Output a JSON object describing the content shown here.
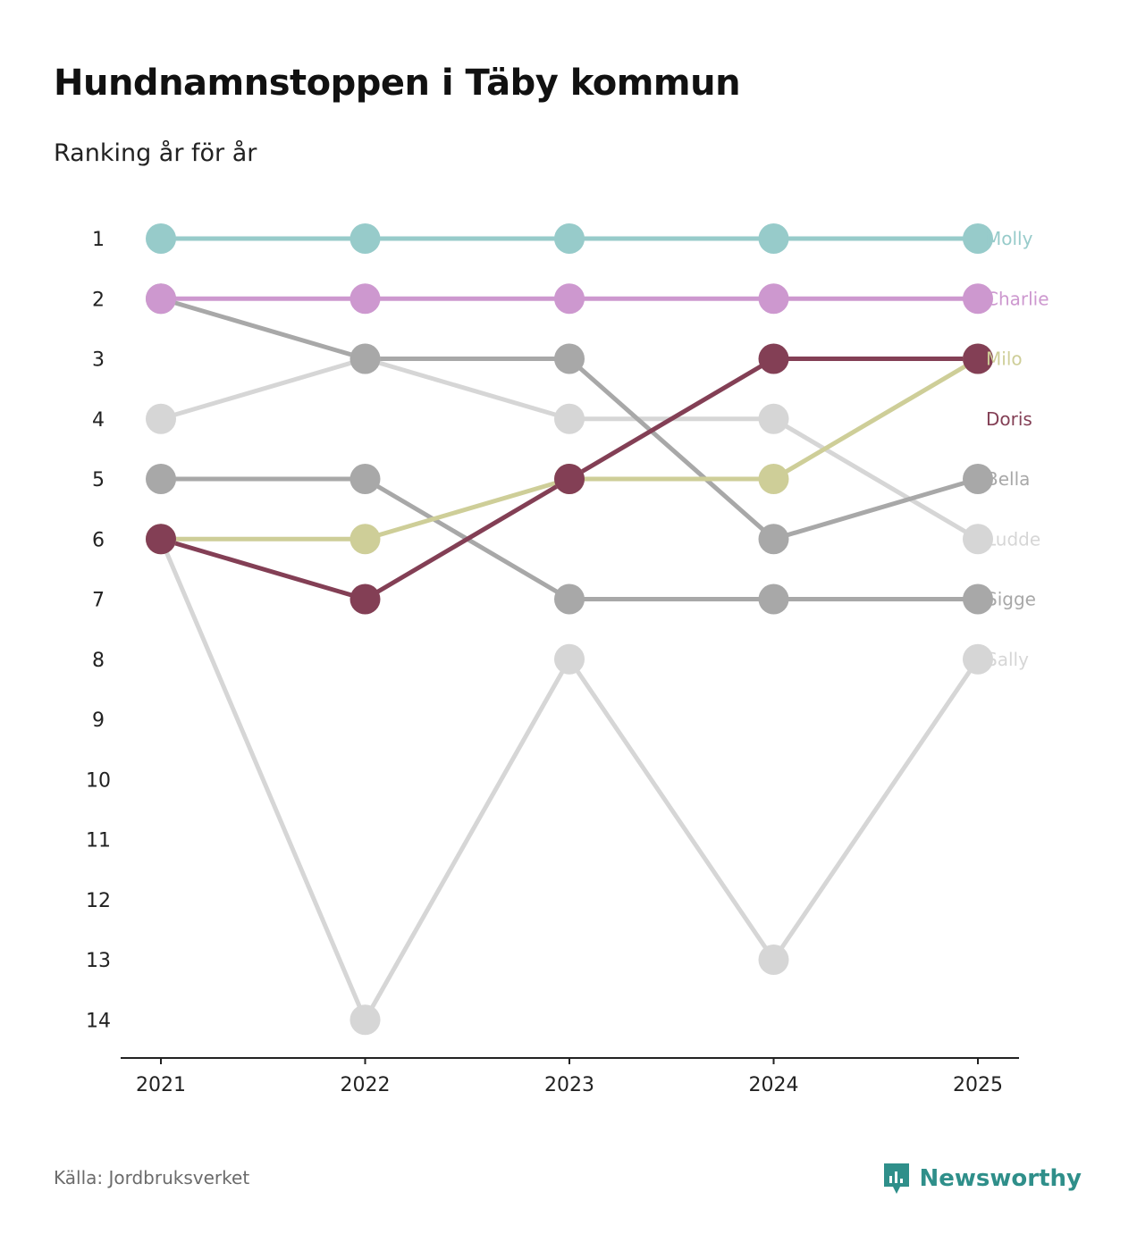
{
  "header": {
    "title": "Hundnamnstoppen i Täby kommun",
    "subtitle": "Ranking år för år"
  },
  "footer": {
    "source": "Källa: Jordbruksverket",
    "brand": "Newsworthy"
  },
  "colors": {
    "molly": "#97cbca",
    "charlie": "#cd98cf",
    "milo": "#cece98",
    "doris": "#833f55",
    "bella": "#a8a8a8",
    "ludde": "#d6d6d6",
    "sigge": "#a8a8a8",
    "sally": "#d6d6d6",
    "axis": "#222222",
    "brand": "#2f8f8a"
  },
  "chart_data": {
    "type": "line",
    "title": "Hundnamnstoppen i Täby kommun",
    "subtitle": "Ranking år för år",
    "xlabel": "",
    "ylabel": "",
    "x": [
      "2021",
      "2022",
      "2023",
      "2024",
      "2025"
    ],
    "y_ticks": [
      1,
      2,
      3,
      4,
      5,
      6,
      7,
      8,
      9,
      10,
      11,
      12,
      13,
      14
    ],
    "ylim": [
      1,
      14
    ],
    "y_inverted": true,
    "series": [
      {
        "name": "Sally",
        "color": "#d6d6d6",
        "values": [
          6,
          14,
          8,
          13,
          8
        ]
      },
      {
        "name": "Ludde",
        "color": "#d6d6d6",
        "values": [
          4,
          3,
          4,
          4,
          6
        ]
      },
      {
        "name": "Bella",
        "color": "#a8a8a8",
        "values": [
          2,
          3,
          3,
          6,
          5
        ]
      },
      {
        "name": "Sigge",
        "color": "#a8a8a8",
        "values": [
          5,
          5,
          7,
          7,
          7
        ]
      },
      {
        "name": "Molly",
        "color": "#97cbca",
        "values": [
          1,
          1,
          1,
          1,
          1
        ]
      },
      {
        "name": "Charlie",
        "color": "#cd98cf",
        "values": [
          2,
          2,
          2,
          2,
          2
        ]
      },
      {
        "name": "Milo",
        "color": "#cece98",
        "values": [
          6,
          6,
          5,
          5,
          3
        ]
      },
      {
        "name": "Doris",
        "color": "#833f55",
        "values": [
          6,
          7,
          5,
          3,
          3
        ]
      }
    ],
    "end_labels": [
      {
        "name": "Molly",
        "rank": 1,
        "color": "#97cbca"
      },
      {
        "name": "Charlie",
        "rank": 2,
        "color": "#cd98cf"
      },
      {
        "name": "Milo",
        "rank": 3,
        "color": "#cece98"
      },
      {
        "name": "Doris",
        "rank": 4,
        "color": "#833f55"
      },
      {
        "name": "Bella",
        "rank": 5,
        "color": "#a8a8a8"
      },
      {
        "name": "Ludde",
        "rank": 6,
        "color": "#d6d6d6"
      },
      {
        "name": "Sigge",
        "rank": 7,
        "color": "#a8a8a8"
      },
      {
        "name": "Sally",
        "rank": 8,
        "color": "#d6d6d6"
      }
    ]
  }
}
